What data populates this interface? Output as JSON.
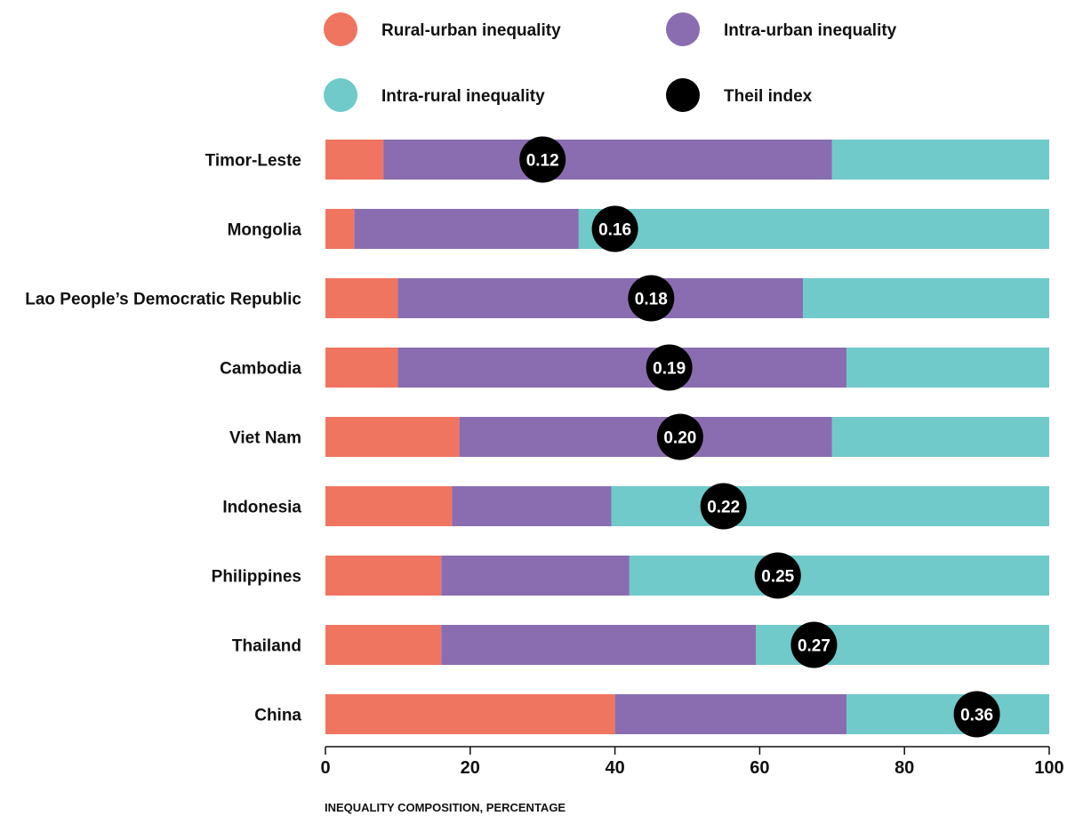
{
  "chart_data": {
    "type": "bar",
    "orientation": "horizontal",
    "stacked": true,
    "xlabel": "INEQUALITY COMPOSITION, PERCENTAGE",
    "xlim": [
      0,
      100
    ],
    "xticks": [
      "0",
      "20",
      "40",
      "60",
      "80",
      "100"
    ],
    "legend_position": "top",
    "categories": [
      "Timor-Leste",
      "Mongolia",
      "Lao People’s Democratic Republic",
      "Cambodia",
      "Viet Nam",
      "Indonesia",
      "Philippines",
      "Thailand",
      "China"
    ],
    "series": [
      {
        "name": "Rural-urban inequality",
        "color": "#f07561",
        "values": [
          8,
          4,
          10,
          10,
          18.5,
          17.5,
          16,
          16,
          40
        ]
      },
      {
        "name": "Intra-urban inequality",
        "color": "#8a6db0",
        "values": [
          62,
          31,
          56,
          62,
          51.5,
          22,
          26,
          43.5,
          32
        ]
      },
      {
        "name": "Intra-rural inequality",
        "color": "#6fcac9",
        "values": [
          30,
          65,
          34,
          28,
          30,
          60.5,
          58,
          40.5,
          28
        ]
      }
    ],
    "theil_index": {
      "name": "Theil index",
      "color": "#000000",
      "labels": [
        "0.12",
        "0.16",
        "0.18",
        "0.19",
        "0.20",
        "0.22",
        "0.25",
        "0.27",
        "0.36"
      ],
      "marker_position_pct": [
        30,
        40,
        45,
        47.5,
        49,
        55,
        62.5,
        67.5,
        90
      ]
    },
    "legend_order": [
      "Rural-urban inequality",
      "Intra-urban inequality",
      "Intra-rural inequality",
      "Theil index"
    ]
  }
}
